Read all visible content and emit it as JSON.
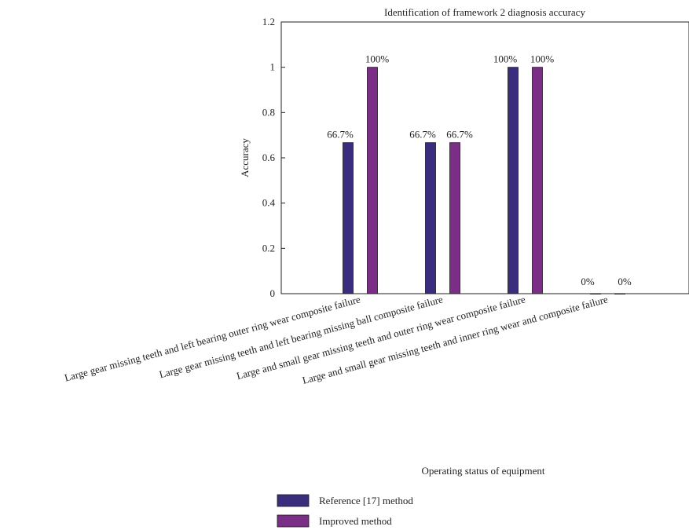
{
  "chart_data": {
    "type": "bar",
    "title": "Identification of framework 2 diagnosis accuracy",
    "xlabel": "Operating status of equipment",
    "ylabel": "Accuracy",
    "ylim": [
      0,
      1.2
    ],
    "yticks": [
      "0",
      "0.2",
      "0.4",
      "0.6",
      "0.8",
      "1",
      "1.2"
    ],
    "categories": [
      "Large gear missing teeth and left bearing outer ring wear composite failure",
      "Large gear missing teeth and left bearing missing ball composite failure",
      "Large and small gear missing teeth and outer ring wear composite failure",
      "Large and small gear missing teeth and inner ring wear and composite failure"
    ],
    "series": [
      {
        "name": "Reference [17] method",
        "color": "#3b2d7e",
        "values": [
          0.667,
          0.667,
          1.0,
          0.0
        ],
        "labels": [
          "66.7%",
          "66.7%",
          "100%",
          "0%"
        ]
      },
      {
        "name": "Improved method",
        "color": "#7b2e86",
        "values": [
          1.0,
          0.667,
          1.0,
          0.0
        ],
        "labels": [
          "100%",
          "66.7%",
          "100%",
          "0%"
        ]
      }
    ],
    "grid": false,
    "legend_position": "bottom"
  }
}
